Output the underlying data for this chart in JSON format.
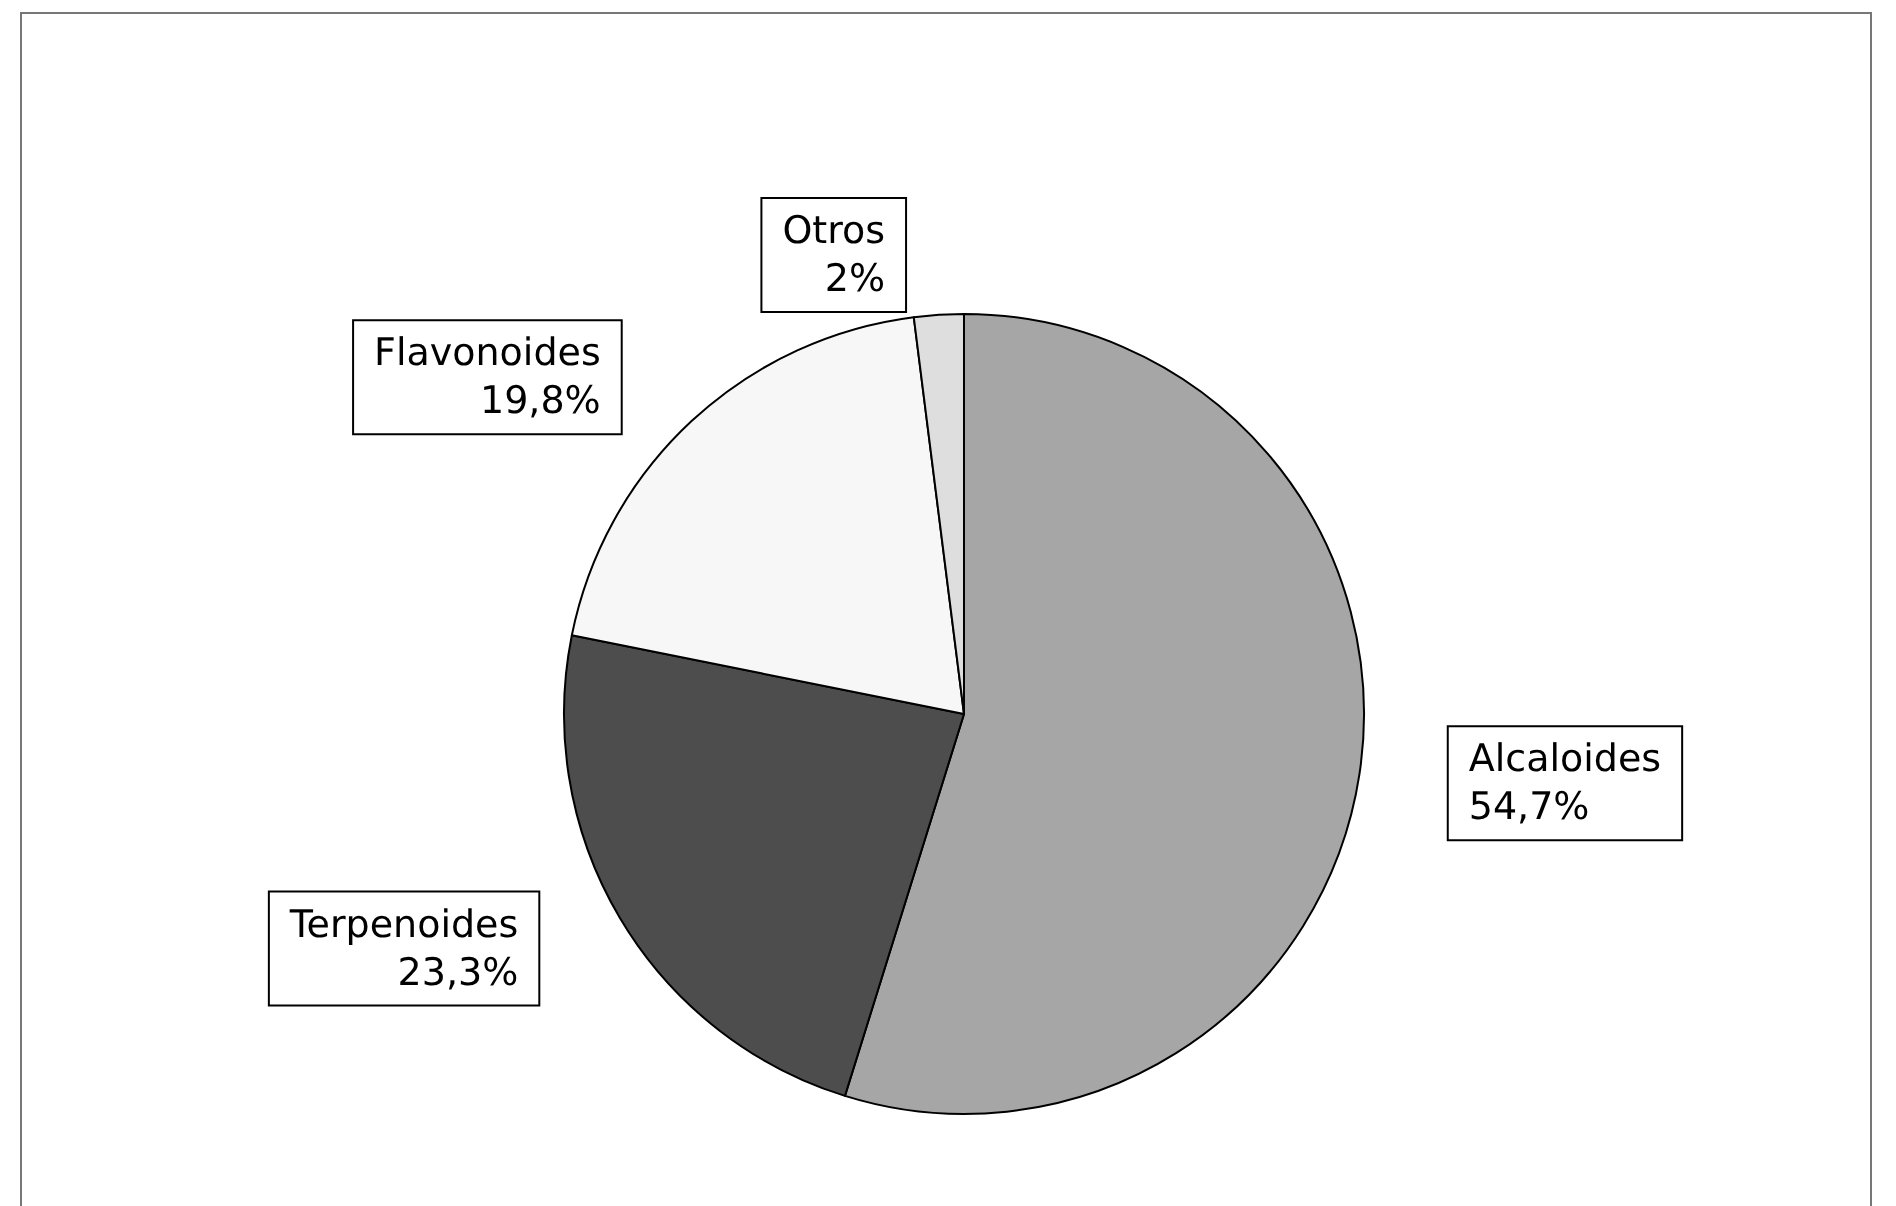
{
  "chart_data": {
    "type": "pie",
    "categories": [
      "Alcaloides",
      "Terpenoides",
      "Flavonoides",
      "Otros"
    ],
    "values": [
      54.7,
      23.3,
      19.8,
      2
    ],
    "colors": [
      "#a6a6a6",
      "#4d4d4d",
      "#f7f7f7",
      "#dedede"
    ],
    "value_labels": [
      "54,7%",
      "23,3%",
      "19,8%",
      "2%"
    ],
    "legend": false
  }
}
